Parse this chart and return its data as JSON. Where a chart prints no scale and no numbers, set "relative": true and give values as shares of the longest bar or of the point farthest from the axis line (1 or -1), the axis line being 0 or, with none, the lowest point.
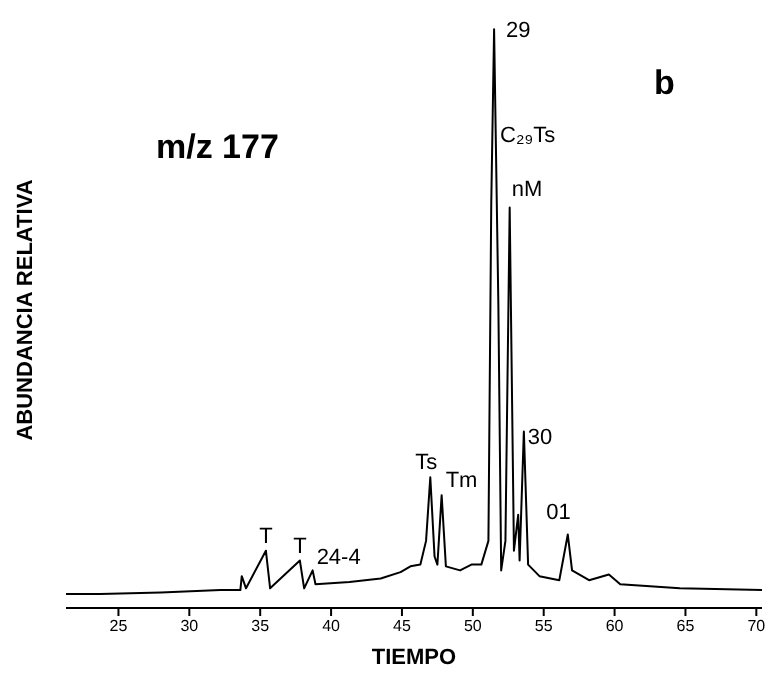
{
  "chart_data": {
    "type": "line",
    "relative": true,
    "xlabel": "TIEMPO",
    "ylabel": "ABUNDANCIA RELATIVA",
    "xlim": [
      21.3,
      70.4
    ],
    "xticks": [
      25,
      30,
      35,
      40,
      45,
      50,
      55,
      60,
      65,
      70
    ],
    "grid": false,
    "legend": false,
    "series": [
      {
        "color": "#000000",
        "x": [
          21.3,
          23.7,
          28.0,
          32.2,
          33.6,
          33.7,
          34.0,
          35.4,
          35.7,
          37.8,
          38.1,
          38.7,
          38.9,
          41.3,
          43.5,
          44.9,
          45.6,
          46.3,
          46.7,
          47.0,
          47.3,
          47.5,
          47.8,
          48.1,
          49.1,
          49.9,
          50.6,
          51.1,
          51.3,
          51.5,
          51.8,
          52.0,
          52.3,
          52.6,
          52.9,
          53.2,
          53.3,
          53.6,
          53.9,
          54.7,
          56.1,
          56.7,
          57.0,
          58.2,
          59.6,
          60.4,
          64.6,
          70.4
        ],
        "values": [
          0.024,
          0.024,
          0.027,
          0.031,
          0.031,
          0.055,
          0.034,
          0.099,
          0.034,
          0.082,
          0.034,
          0.065,
          0.041,
          0.045,
          0.051,
          0.062,
          0.072,
          0.075,
          0.116,
          0.226,
          0.089,
          0.075,
          0.195,
          0.072,
          0.065,
          0.075,
          0.075,
          0.116,
          0.699,
          1,
          0.527,
          0.065,
          0.116,
          0.692,
          0.099,
          0.161,
          0.082,
          0.305,
          0.075,
          0.055,
          0.048,
          0.127,
          0.065,
          0.048,
          0.058,
          0.041,
          0.034,
          0.031
        ]
      }
    ],
    "annotations": [
      "m/z 177",
      "b",
      {
        "text": "29",
        "x": 51.5,
        "y": 1
      },
      {
        "text": "C₂₉Ts",
        "x": 51.5,
        "y": 0.84
      },
      {
        "text": "nM",
        "x": 52.6,
        "y": 0.692
      },
      {
        "text": "30",
        "x": 53.6,
        "y": 0.305
      },
      {
        "text": "01",
        "x": 53.2,
        "y": 0.161
      },
      {
        "text": "Ts",
        "x": 47.0,
        "y": 0.226
      },
      {
        "text": "Tm",
        "x": 47.8,
        "y": 0.195
      },
      {
        "text": "T",
        "x": 35.4,
        "y": 0.099
      },
      {
        "text": "T",
        "x": 37.8,
        "y": 0.082
      },
      {
        "text": "24-4",
        "x": 38.7,
        "y": 0.065
      }
    ]
  }
}
